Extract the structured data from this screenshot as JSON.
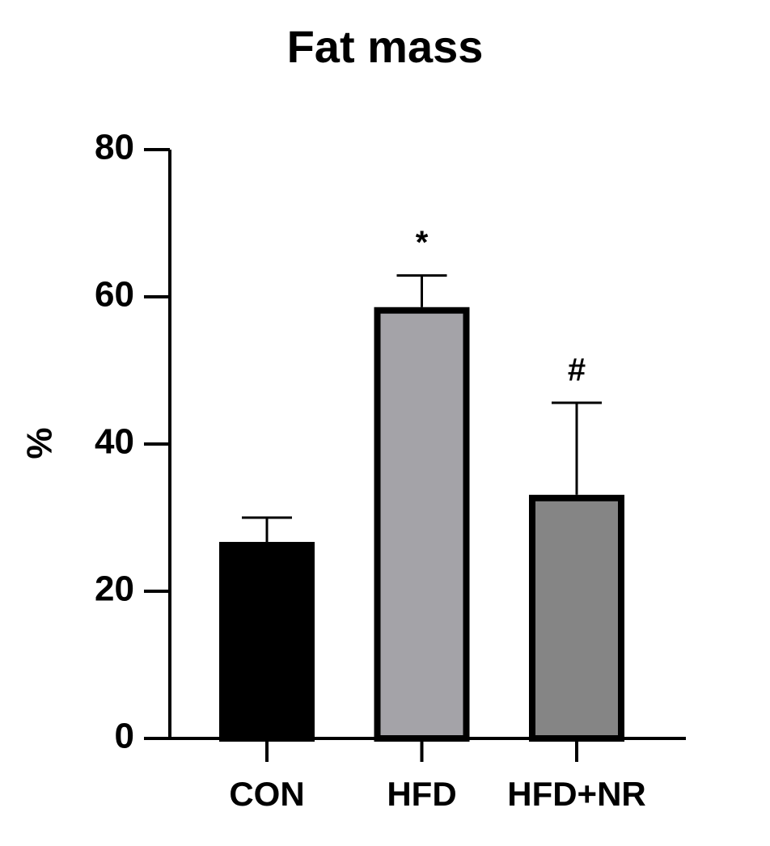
{
  "chart_data": {
    "type": "bar",
    "title": "Fat  mass",
    "y_label": "%",
    "categories": [
      "CON",
      "HFD",
      "HFD+NR"
    ],
    "values": [
      26.7,
      58.6,
      33.1
    ],
    "errors": [
      3.3,
      4.3,
      12.5
    ],
    "colors": [
      "#000000",
      "#a4a3a8",
      "#858585"
    ],
    "significance": [
      null,
      "*",
      "#"
    ],
    "ylim": [
      0,
      80
    ],
    "yticks": [
      0,
      20,
      40,
      60,
      80
    ]
  }
}
